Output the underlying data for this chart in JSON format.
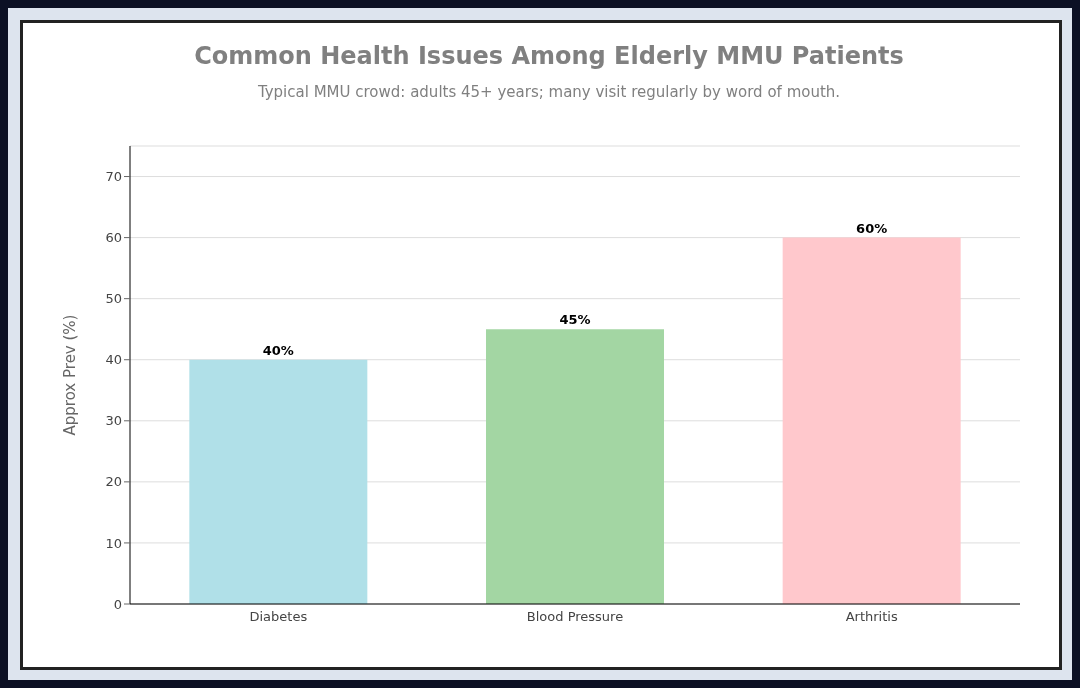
{
  "chart_data": {
    "type": "bar",
    "title": "Common Health Issues Among Elderly MMU Patients",
    "subtitle": "Typical MMU crowd: adults 45+ years; many visit regularly by word of mouth.",
    "ylabel": "Approx Prev (%)",
    "categories": [
      "Diabetes",
      "Blood Pressure",
      "Arthritis"
    ],
    "values": [
      40,
      45,
      60
    ],
    "colors": [
      "#b0e0e8",
      "#a3d6a3",
      "#ffc8cc"
    ],
    "value_labels": [
      "40%",
      "45%",
      "60%"
    ],
    "ylim": [
      0,
      75
    ],
    "yticks": [
      0,
      10,
      20,
      30,
      40,
      50,
      60,
      70
    ],
    "grid": "y"
  }
}
